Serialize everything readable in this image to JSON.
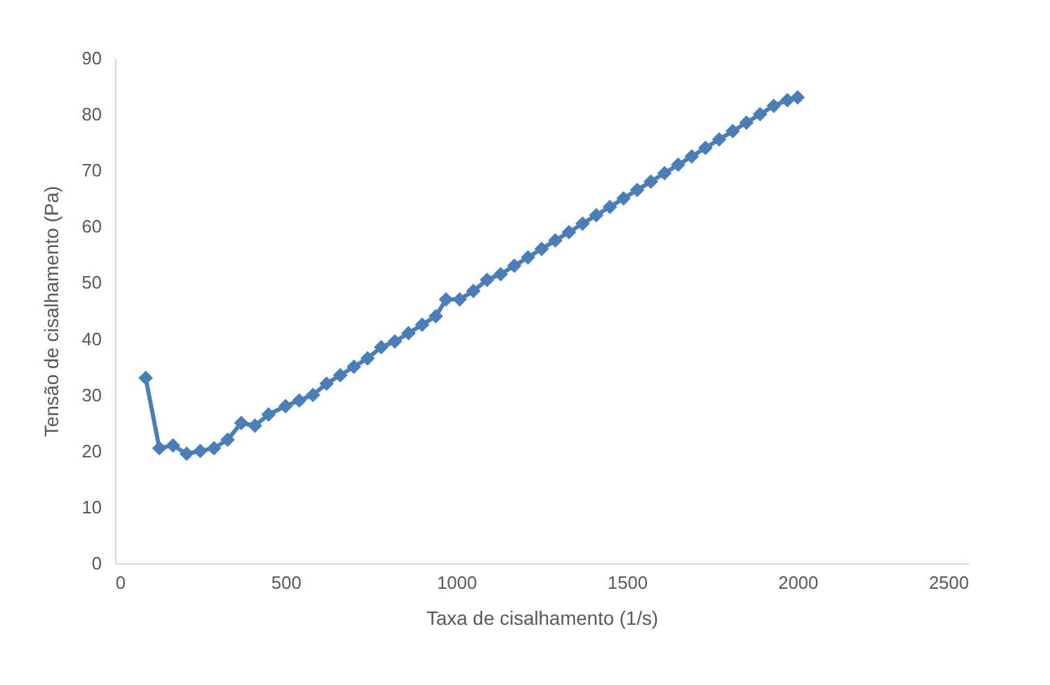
{
  "chart_data": {
    "type": "line",
    "xlabel": "Taxa de cisalhamento (1/s)",
    "ylabel": "Tensão de cisalhamento (Pa)",
    "x": [
      90,
      130,
      170,
      210,
      250,
      290,
      330,
      370,
      410,
      450,
      500,
      540,
      580,
      620,
      660,
      700,
      740,
      780,
      820,
      860,
      900,
      940,
      970,
      1010,
      1050,
      1090,
      1130,
      1170,
      1210,
      1250,
      1290,
      1330,
      1370,
      1410,
      1450,
      1490,
      1530,
      1570,
      1610,
      1650,
      1690,
      1730,
      1770,
      1810,
      1850,
      1890,
      1930,
      1970,
      2000
    ],
    "series": [
      {
        "color": "#4a7ebb",
        "values": [
          33,
          20.5,
          21,
          19.5,
          20,
          20.5,
          22,
          25,
          24.5,
          26.5,
          28,
          29,
          30,
          32,
          33.5,
          35,
          36.5,
          38.5,
          39.5,
          41,
          42.5,
          44,
          47,
          47,
          48.5,
          50.5,
          51.5,
          53,
          54.5,
          56,
          57.5,
          59,
          60.5,
          62,
          63.5,
          65,
          66.5,
          68,
          69.5,
          71,
          72.5,
          74,
          75.5,
          77,
          78.5,
          80,
          81.5,
          82.5,
          83
        ]
      }
    ],
    "xlim": [
      0,
      2500
    ],
    "xticks": [
      0,
      500,
      1000,
      1500,
      2000,
      2500
    ],
    "ylim": [
      0,
      90
    ],
    "yticks": [
      0,
      10,
      20,
      30,
      40,
      50,
      60,
      70,
      80,
      90
    ],
    "grid": false,
    "legend": false,
    "marker": "diamond",
    "line_style": "solid"
  }
}
